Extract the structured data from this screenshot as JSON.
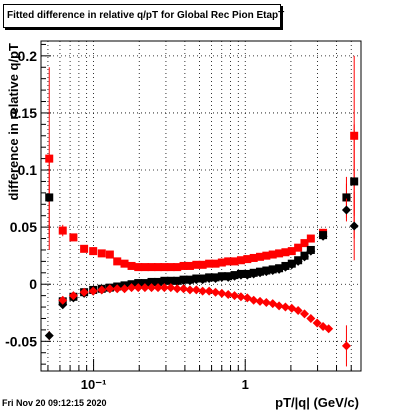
{
  "chart_data": {
    "type": "scatter",
    "title": "Fitted difference in relative q/pT for Global Rec Pion EtapT",
    "xlabel": "pT/|q| (GeV/c)",
    "ylabel": "difference in relative q/pT",
    "x_scale": "log",
    "xlim": [
      0.045,
      5.8
    ],
    "ylim": [
      -0.076,
      0.213
    ],
    "x_ticks": [
      {
        "value": 0.1,
        "label": "10⁻¹"
      },
      {
        "value": 1,
        "label": "1"
      }
    ],
    "y_ticks": [
      {
        "value": -0.05,
        "label": "-0.05"
      },
      {
        "value": 0,
        "label": "0"
      },
      {
        "value": 0.05,
        "label": "0.05"
      },
      {
        "value": 0.1,
        "label": "0.1"
      },
      {
        "value": 0.15,
        "label": "0.15"
      },
      {
        "value": 0.2,
        "label": "0.2"
      }
    ],
    "grid": true,
    "series": [
      {
        "marker": "square",
        "color": "#ff0000",
        "error_color": "#ff0000",
        "x": [
          0.051,
          0.0626,
          0.0736,
          0.0866,
          0.0994,
          0.1132,
          0.128,
          0.1432,
          0.16,
          0.178,
          0.197,
          0.218,
          0.241,
          0.266,
          0.293,
          0.323,
          0.356,
          0.392,
          0.432,
          0.476,
          0.524,
          0.578,
          0.637,
          0.701,
          0.772,
          0.85,
          0.937,
          1.032,
          1.137,
          1.252,
          1.378,
          1.518,
          1.672,
          1.841,
          2.027,
          2.233,
          2.459,
          2.708,
          3.26,
          4.65,
          5.23
        ],
        "y": [
          0.11,
          0.047,
          0.041,
          0.031,
          0.029,
          0.027,
          0.026,
          0.02,
          0.018,
          0.016,
          0.015,
          0.015,
          0.015,
          0.015,
          0.015,
          0.015,
          0.015,
          0.016,
          0.016,
          0.017,
          0.017,
          0.018,
          0.018,
          0.019,
          0.02,
          0.02,
          0.021,
          0.022,
          0.023,
          0.024,
          0.025,
          0.026,
          0.027,
          0.028,
          0.029,
          0.032,
          0.036,
          0.04,
          0.045,
          0.076,
          0.13
        ],
        "err": [
          0.08,
          0.005,
          0.003,
          0.002,
          0.002,
          0.002,
          0.002,
          0.001,
          0.001,
          0.001,
          0.001,
          0.001,
          0.001,
          0.001,
          0.001,
          0.001,
          0.001,
          0.001,
          0.001,
          0.001,
          0.001,
          0.001,
          0.001,
          0.001,
          0.001,
          0.001,
          0.001,
          0.001,
          0.001,
          0.001,
          0.001,
          0.001,
          0.001,
          0.001,
          0.001,
          0.002,
          0.002,
          0.003,
          0.003,
          0.018,
          0.07
        ]
      },
      {
        "marker": "square",
        "color": "#000000",
        "error_color": "#ff0000",
        "x": [
          0.051,
          0.0626,
          0.0736,
          0.0866,
          0.0994,
          0.1132,
          0.128,
          0.1432,
          0.16,
          0.178,
          0.197,
          0.218,
          0.241,
          0.266,
          0.293,
          0.323,
          0.356,
          0.392,
          0.432,
          0.476,
          0.524,
          0.578,
          0.637,
          0.701,
          0.772,
          0.85,
          0.937,
          1.032,
          1.137,
          1.252,
          1.378,
          1.518,
          1.672,
          1.841,
          2.027,
          2.233,
          2.459,
          2.708,
          3.26,
          4.65,
          5.23
        ],
        "y": [
          0.076,
          -0.015,
          -0.011,
          -0.007,
          -0.005,
          -0.004,
          -0.003,
          -0.002,
          -0.001,
          0.0,
          0.001,
          0.001,
          0.002,
          0.002,
          0.003,
          0.003,
          0.003,
          0.004,
          0.004,
          0.005,
          0.005,
          0.006,
          0.006,
          0.007,
          0.007,
          0.008,
          0.009,
          0.009,
          0.01,
          0.011,
          0.012,
          0.013,
          0.014,
          0.016,
          0.018,
          0.021,
          0.025,
          0.03,
          0.043,
          0.076,
          0.09
        ],
        "err": [
          0.035,
          0.004,
          0.003,
          0.002,
          0.002,
          0.001,
          0.001,
          0.001,
          0.001,
          0.001,
          0.001,
          0.001,
          0.001,
          0.001,
          0.001,
          0.001,
          0.001,
          0.001,
          0.001,
          0.001,
          0.001,
          0.001,
          0.001,
          0.001,
          0.001,
          0.001,
          0.001,
          0.001,
          0.001,
          0.001,
          0.001,
          0.001,
          0.001,
          0.001,
          0.001,
          0.002,
          0.002,
          0.003,
          0.003,
          0.012,
          0.05
        ]
      },
      {
        "marker": "diamond",
        "color": "#000000",
        "error_color": "#ff0000",
        "x": [
          0.051,
          0.0626,
          0.0736,
          0.0866,
          0.0994,
          0.1132,
          0.128,
          0.1432,
          0.16,
          0.178,
          0.197,
          0.218,
          0.241,
          0.266,
          0.293,
          0.323,
          0.356,
          0.392,
          0.432,
          0.476,
          0.524,
          0.578,
          0.637,
          0.701,
          0.772,
          0.85,
          0.937,
          1.032,
          1.137,
          1.252,
          1.378,
          1.518,
          1.672,
          1.841,
          2.027,
          2.233,
          2.459,
          2.708,
          3.26,
          4.65,
          5.23
        ],
        "y": [
          -0.045,
          -0.018,
          -0.012,
          -0.008,
          -0.006,
          -0.005,
          -0.004,
          -0.003,
          -0.002,
          -0.001,
          0.0,
          0.0,
          0.001,
          0.001,
          0.002,
          0.002,
          0.002,
          0.003,
          0.003,
          0.004,
          0.004,
          0.005,
          0.005,
          0.006,
          0.006,
          0.007,
          0.008,
          0.008,
          0.009,
          0.01,
          0.011,
          0.012,
          0.013,
          0.015,
          0.017,
          0.02,
          0.024,
          0.029,
          0.042,
          0.065,
          0.051
        ],
        "err": [
          0.004,
          0.003,
          0.002,
          0.002,
          0.001,
          0.001,
          0.001,
          0.001,
          0.001,
          0.001,
          0.001,
          0.001,
          0.001,
          0.001,
          0.001,
          0.001,
          0.001,
          0.001,
          0.001,
          0.001,
          0.001,
          0.001,
          0.001,
          0.001,
          0.001,
          0.001,
          0.001,
          0.001,
          0.001,
          0.001,
          0.001,
          0.001,
          0.001,
          0.001,
          0.001,
          0.001,
          0.002,
          0.002,
          0.003,
          0.01,
          0.03
        ]
      },
      {
        "marker": "diamond",
        "color": "#ff0000",
        "error_color": "#ff0000",
        "x": [
          0.0626,
          0.0736,
          0.0866,
          0.0994,
          0.1132,
          0.128,
          0.1432,
          0.16,
          0.178,
          0.197,
          0.218,
          0.241,
          0.266,
          0.293,
          0.323,
          0.356,
          0.392,
          0.432,
          0.476,
          0.524,
          0.578,
          0.637,
          0.701,
          0.772,
          0.85,
          0.937,
          1.032,
          1.137,
          1.252,
          1.378,
          1.518,
          1.672,
          1.841,
          2.027,
          2.233,
          2.459,
          2.708,
          2.98,
          3.26,
          3.55,
          4.65
        ],
        "y": [
          -0.014,
          -0.01,
          -0.007,
          -0.006,
          -0.005,
          -0.004,
          -0.004,
          -0.004,
          -0.003,
          -0.003,
          -0.003,
          -0.003,
          -0.003,
          -0.003,
          -0.003,
          -0.004,
          -0.004,
          -0.005,
          -0.005,
          -0.006,
          -0.006,
          -0.007,
          -0.008,
          -0.009,
          -0.01,
          -0.011,
          -0.012,
          -0.014,
          -0.015,
          -0.016,
          -0.017,
          -0.019,
          -0.02,
          -0.021,
          -0.023,
          -0.026,
          -0.03,
          -0.034,
          -0.037,
          -0.039,
          -0.054
        ],
        "err": [
          0.003,
          0.002,
          0.002,
          0.001,
          0.001,
          0.001,
          0.001,
          0.001,
          0.001,
          0.001,
          0.001,
          0.001,
          0.001,
          0.001,
          0.001,
          0.001,
          0.001,
          0.001,
          0.001,
          0.001,
          0.001,
          0.001,
          0.001,
          0.001,
          0.001,
          0.001,
          0.001,
          0.001,
          0.001,
          0.001,
          0.001,
          0.001,
          0.001,
          0.001,
          0.001,
          0.002,
          0.002,
          0.002,
          0.003,
          0.003,
          0.018
        ]
      }
    ]
  },
  "footer": {
    "timestamp": "Fri Nov 20 09:12:15 2020"
  }
}
